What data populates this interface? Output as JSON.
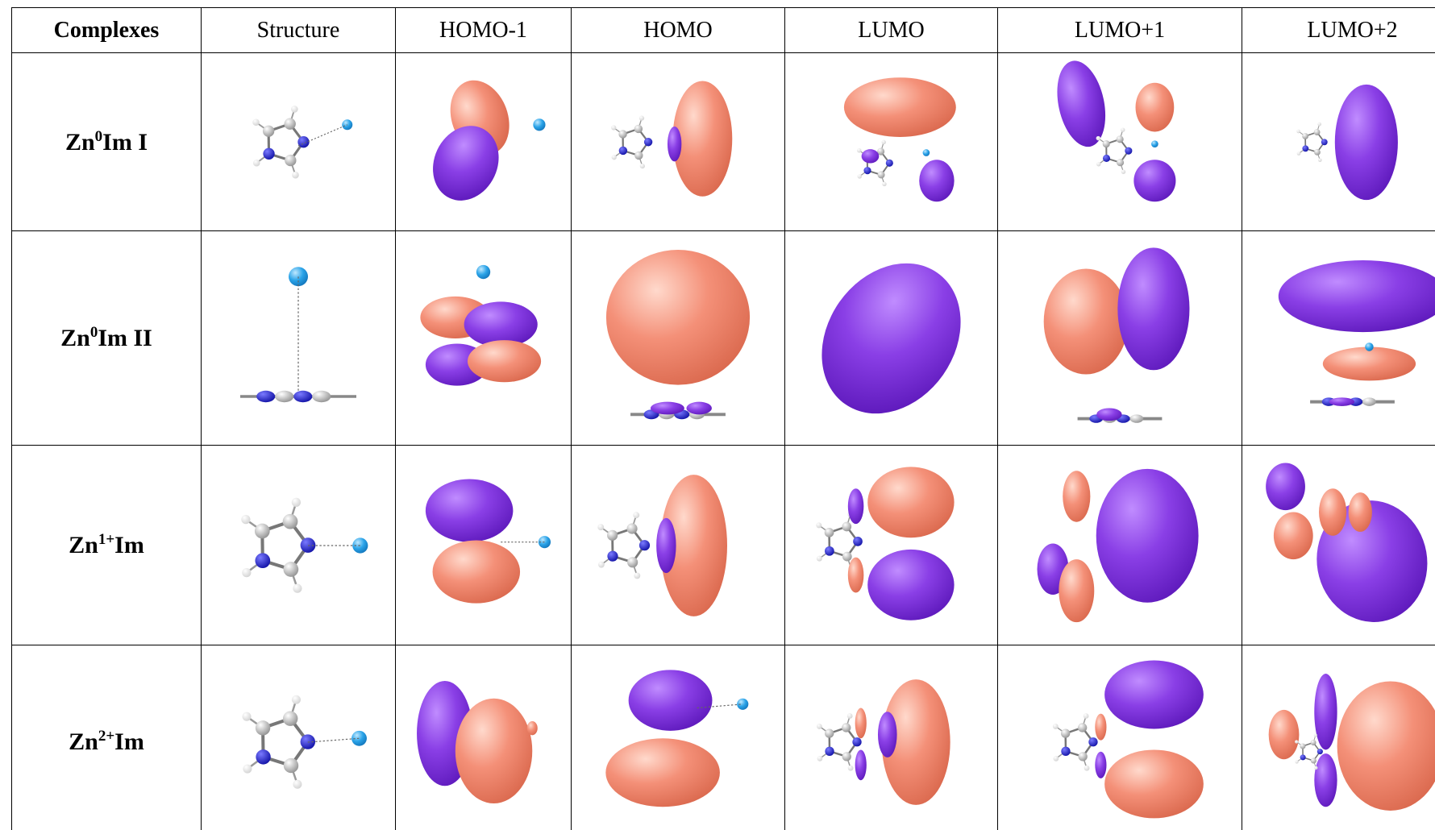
{
  "table": {
    "header": [
      "Complexes",
      "Structure",
      "HOMO-1",
      "HOMO",
      "LUMO",
      "LUMO+1",
      "LUMO+2"
    ],
    "rows": [
      {
        "label": {
          "base": "Zn",
          "sup": "0",
          "rest": "Im I"
        }
      },
      {
        "label": {
          "base": "Zn",
          "sup": "0",
          "rest": "Im II"
        }
      },
      {
        "label": {
          "base": "Zn",
          "sup": "1+",
          "rest": "Im"
        }
      },
      {
        "label": {
          "base": "Zn",
          "sup": "2+",
          "rest": "Im"
        }
      }
    ]
  }
}
